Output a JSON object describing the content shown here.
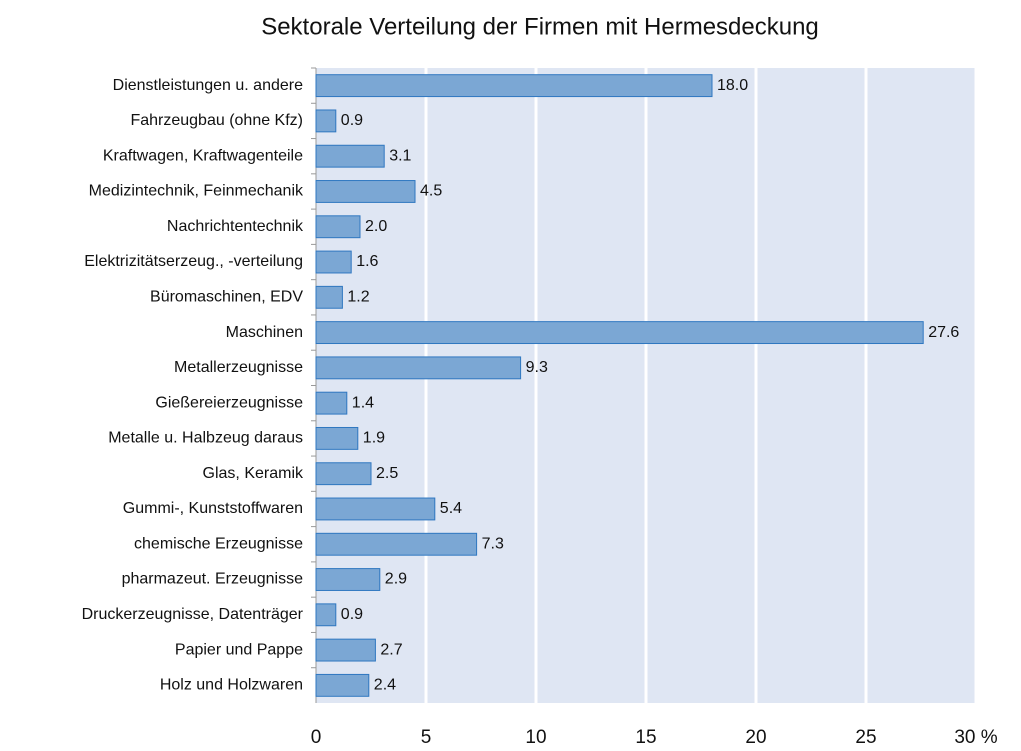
{
  "chart_data": {
    "type": "bar",
    "orientation": "horizontal",
    "title": "Sektorale Verteilung der Firmen mit Hermesdeckung",
    "categories": [
      "Dienstleistungen u. andere",
      "Fahrzeugbau (ohne Kfz)",
      "Kraftwagen, Kraftwagenteile",
      "Medizintechnik, Feinmechanik",
      "Nachrichtentechnik",
      "Elektrizitätserzeug., -verteilung",
      "Büromaschinen, EDV",
      "Maschinen",
      "Metallerzeugnisse",
      "Gießereierzeugnisse",
      "Metalle u. Halbzeug daraus",
      "Glas, Keramik",
      "Gummi-, Kunststoffwaren",
      "chemische Erzeugnisse",
      "pharmazeut. Erzeugnisse",
      "Druckerzeugnisse, Datenträger",
      "Papier und Pappe",
      "Holz und Holzwaren"
    ],
    "values": [
      18.0,
      0.9,
      3.1,
      4.5,
      2.0,
      1.6,
      1.2,
      27.6,
      9.3,
      1.4,
      1.9,
      2.5,
      5.4,
      7.3,
      2.9,
      0.9,
      2.7,
      2.4
    ],
    "value_labels": [
      "18.0",
      "0.9",
      "3.1",
      "4.5",
      "2.0",
      "1.6",
      "1.2",
      "27.6",
      "9.3",
      "1.4",
      "1.9",
      "2.5",
      "5.4",
      "7.3",
      "2.9",
      "0.9",
      "2.7",
      "2.4"
    ],
    "color": "#7ba7d4",
    "edge_color": "#2f77c0",
    "background": "#dfe6f3",
    "xlim": [
      0,
      30
    ],
    "xticks": [
      0,
      5,
      10,
      15,
      20,
      25,
      {
        "value": 30,
        "label": "30 %"
      }
    ],
    "grid": true
  }
}
